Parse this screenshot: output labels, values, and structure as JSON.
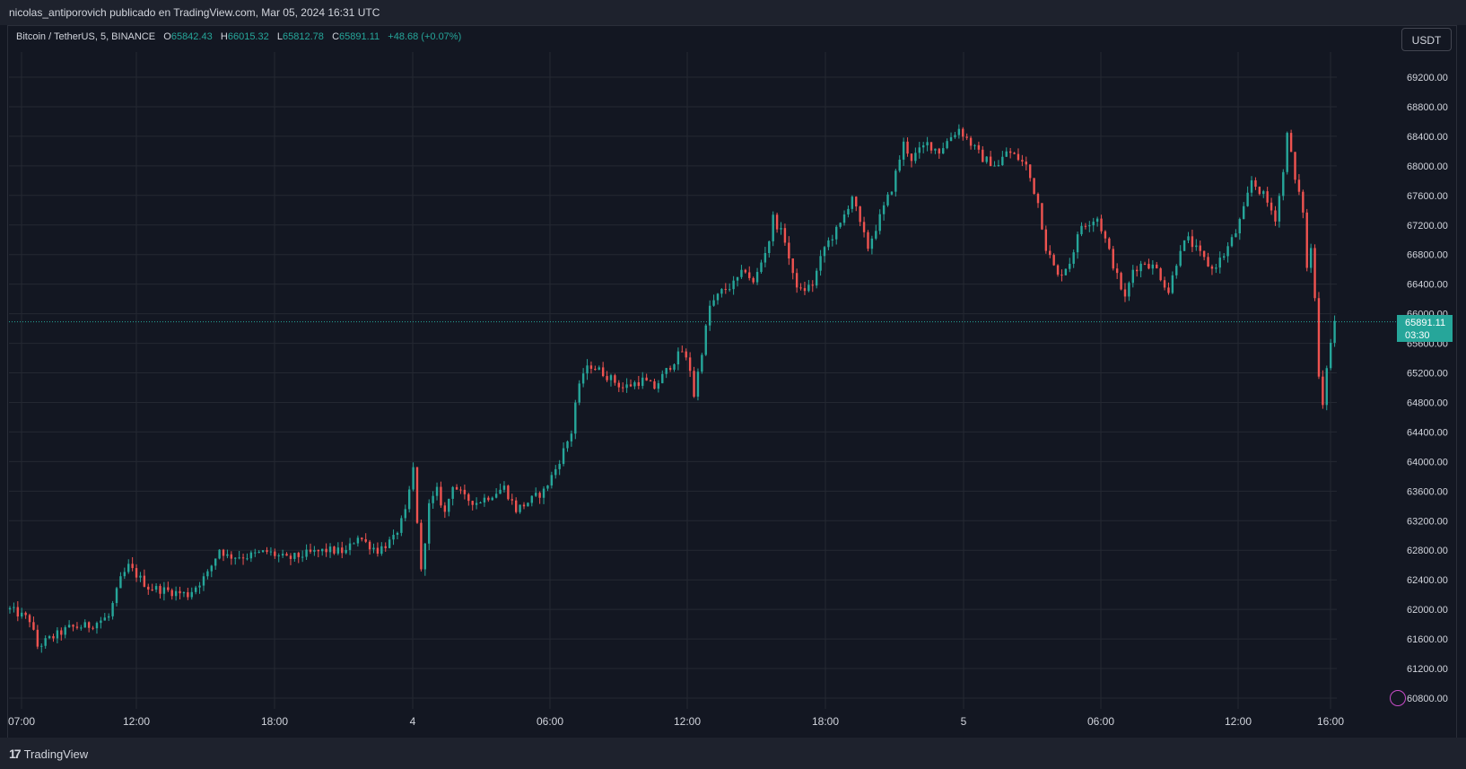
{
  "header": {
    "attribution": "nicolas_antiporovich publicado en TradingView.com, Mar 05, 2024 16:31 UTC"
  },
  "legend": {
    "symbol": "Bitcoin / TetherUS, 5, BINANCE",
    "open_label": "O",
    "open": "65842.43",
    "high_label": "H",
    "high": "66015.32",
    "low_label": "L",
    "low": "65812.78",
    "close_label": "C",
    "close": "65891.11",
    "change": "+48.68 (+0.07%)"
  },
  "currency_button": "USDT",
  "price_badge": {
    "price": "65891.11",
    "countdown": "03:30"
  },
  "footer": {
    "brand": "TradingView",
    "logo": "17"
  },
  "colors": {
    "up": "#26a69a",
    "down": "#ef5350",
    "grid": "#242832",
    "text": "#d1d4dc"
  },
  "icons": {
    "alert": "alert-clock-icon"
  },
  "chart_data": {
    "type": "candlestick",
    "interval": "5",
    "ylim": [
      60600,
      69500
    ],
    "y_ticks": [
      "69200.00",
      "68800.00",
      "68400.00",
      "68000.00",
      "67600.00",
      "67200.00",
      "66800.00",
      "66400.00",
      "66000.00",
      "65600.00",
      "65200.00",
      "64800.00",
      "64400.00",
      "64000.00",
      "63600.00",
      "63200.00",
      "62800.00",
      "62400.00",
      "62000.00",
      "61600.00",
      "61200.00",
      "60800.00"
    ],
    "x_ticks": [
      "07:00",
      "12:00",
      "18:00",
      "4",
      "06:00",
      "12:00",
      "18:00",
      "5",
      "06:00",
      "12:00",
      "16:00"
    ],
    "last_price": 65891.11,
    "price_path": [
      [
        0,
        62000
      ],
      [
        5,
        61860
      ],
      [
        7,
        61500
      ],
      [
        10,
        61600
      ],
      [
        15,
        61750
      ],
      [
        20,
        61780
      ],
      [
        25,
        61900
      ],
      [
        28,
        62400
      ],
      [
        30,
        62580
      ],
      [
        35,
        62300
      ],
      [
        40,
        62250
      ],
      [
        45,
        62200
      ],
      [
        50,
        62480
      ],
      [
        53,
        62820
      ],
      [
        55,
        62720
      ],
      [
        60,
        62720
      ],
      [
        65,
        62780
      ],
      [
        70,
        62680
      ],
      [
        75,
        62750
      ],
      [
        80,
        62800
      ],
      [
        85,
        62780
      ],
      [
        88,
        63000
      ],
      [
        90,
        62900
      ],
      [
        93,
        62800
      ],
      [
        97,
        62950
      ],
      [
        100,
        63300
      ],
      [
        102,
        63900
      ],
      [
        104,
        62500
      ],
      [
        106,
        63400
      ],
      [
        108,
        63600
      ],
      [
        110,
        63300
      ],
      [
        112,
        63700
      ],
      [
        115,
        63500
      ],
      [
        118,
        63450
      ],
      [
        120,
        63500
      ],
      [
        125,
        63650
      ],
      [
        128,
        63350
      ],
      [
        131,
        63450
      ],
      [
        135,
        63600
      ],
      [
        138,
        63900
      ],
      [
        142,
        64400
      ],
      [
        143,
        64800
      ],
      [
        145,
        65200
      ],
      [
        147,
        65300
      ],
      [
        150,
        65200
      ],
      [
        155,
        65000
      ],
      [
        160,
        65100
      ],
      [
        163,
        65000
      ],
      [
        167,
        65300
      ],
      [
        170,
        65500
      ],
      [
        172,
        65250
      ],
      [
        173,
        64900
      ],
      [
        175,
        65500
      ],
      [
        177,
        66100
      ],
      [
        180,
        66300
      ],
      [
        183,
        66400
      ],
      [
        186,
        66600
      ],
      [
        188,
        66400
      ],
      [
        190,
        66700
      ],
      [
        192,
        67000
      ],
      [
        193,
        67300
      ],
      [
        196,
        67000
      ],
      [
        198,
        66500
      ],
      [
        200,
        66300
      ],
      [
        203,
        66400
      ],
      [
        206,
        66900
      ],
      [
        210,
        67200
      ],
      [
        213,
        67600
      ],
      [
        215,
        67200
      ],
      [
        217,
        66900
      ],
      [
        220,
        67300
      ],
      [
        223,
        67700
      ],
      [
        226,
        68300
      ],
      [
        228,
        68100
      ],
      [
        232,
        68300
      ],
      [
        235,
        68200
      ],
      [
        238,
        68400
      ],
      [
        240,
        68500
      ],
      [
        243,
        68300
      ],
      [
        246,
        68100
      ],
      [
        250,
        68000
      ],
      [
        252,
        68200
      ],
      [
        255,
        68100
      ],
      [
        257,
        68000
      ],
      [
        260,
        67500
      ],
      [
        262,
        66900
      ],
      [
        265,
        66500
      ],
      [
        268,
        66700
      ],
      [
        271,
        67200
      ],
      [
        275,
        67300
      ],
      [
        277,
        67000
      ],
      [
        280,
        66500
      ],
      [
        282,
        66200
      ],
      [
        284,
        66600
      ],
      [
        287,
        66700
      ],
      [
        290,
        66600
      ],
      [
        293,
        66300
      ],
      [
        296,
        66900
      ],
      [
        298,
        67000
      ],
      [
        301,
        66800
      ],
      [
        304,
        66600
      ],
      [
        307,
        66800
      ],
      [
        310,
        67100
      ],
      [
        312,
        67400
      ],
      [
        314,
        67800
      ],
      [
        317,
        67600
      ],
      [
        320,
        67300
      ],
      [
        322,
        67900
      ],
      [
        323,
        68500
      ],
      [
        325,
        67800
      ],
      [
        327,
        67400
      ],
      [
        328,
        66600
      ],
      [
        329,
        66900
      ],
      [
        330,
        66200
      ],
      [
        331,
        65200
      ],
      [
        332,
        64800
      ],
      [
        333,
        65300
      ],
      [
        334,
        65600
      ],
      [
        335,
        65900
      ]
    ]
  }
}
